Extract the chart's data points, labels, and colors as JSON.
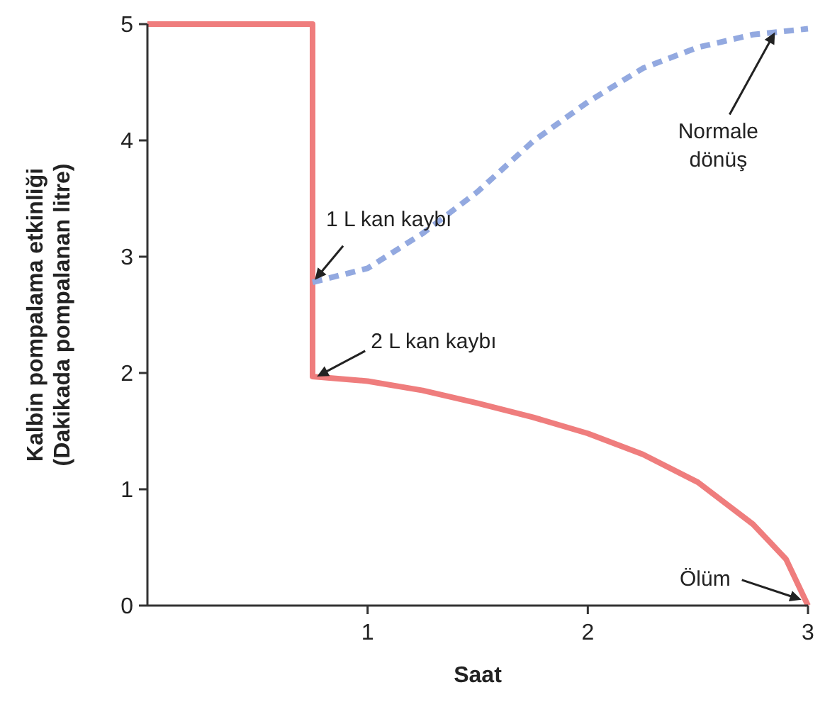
{
  "chart_data": {
    "type": "line",
    "xlabel": "Saat",
    "ylabel": "Kalbin pompalama etkinliği\n(Dakikada pompalanan litre)",
    "xlim": [
      0,
      3
    ],
    "ylim": [
      0,
      5
    ],
    "xticks": [
      1,
      2,
      3
    ],
    "yticks": [
      0,
      1,
      2,
      3,
      4,
      5
    ],
    "grid": false,
    "series": [
      {
        "color": "#ef7d7d",
        "line_style": "solid",
        "x": [
          0,
          0.75,
          0.75,
          1,
          1.25,
          1.5,
          1.75,
          2,
          2.25,
          2.5,
          2.75,
          2.9,
          3
        ],
        "values": [
          5,
          5,
          1.97,
          1.93,
          1.85,
          1.74,
          1.62,
          1.48,
          1.3,
          1.06,
          0.7,
          0.4,
          0
        ]
      },
      {
        "color": "#93a9e0",
        "line_style": "dashed",
        "x": [
          0.75,
          1,
          1.25,
          1.5,
          1.75,
          2,
          2.25,
          2.5,
          2.75,
          3
        ],
        "values": [
          2.78,
          2.9,
          3.2,
          3.56,
          3.99,
          4.33,
          4.62,
          4.8,
          4.91,
          4.96
        ]
      }
    ],
    "annotations": [
      {
        "text": "1 L kan kaybı",
        "x": 0.76,
        "y": 2.8
      },
      {
        "text": "2 L kan kaybı",
        "x": 0.77,
        "y": 1.97
      },
      {
        "text": "Normale\ndönüş",
        "x": 2.85,
        "y": 4.93
      },
      {
        "text": "Ölüm",
        "x": 2.97,
        "y": 0.05
      }
    ]
  }
}
